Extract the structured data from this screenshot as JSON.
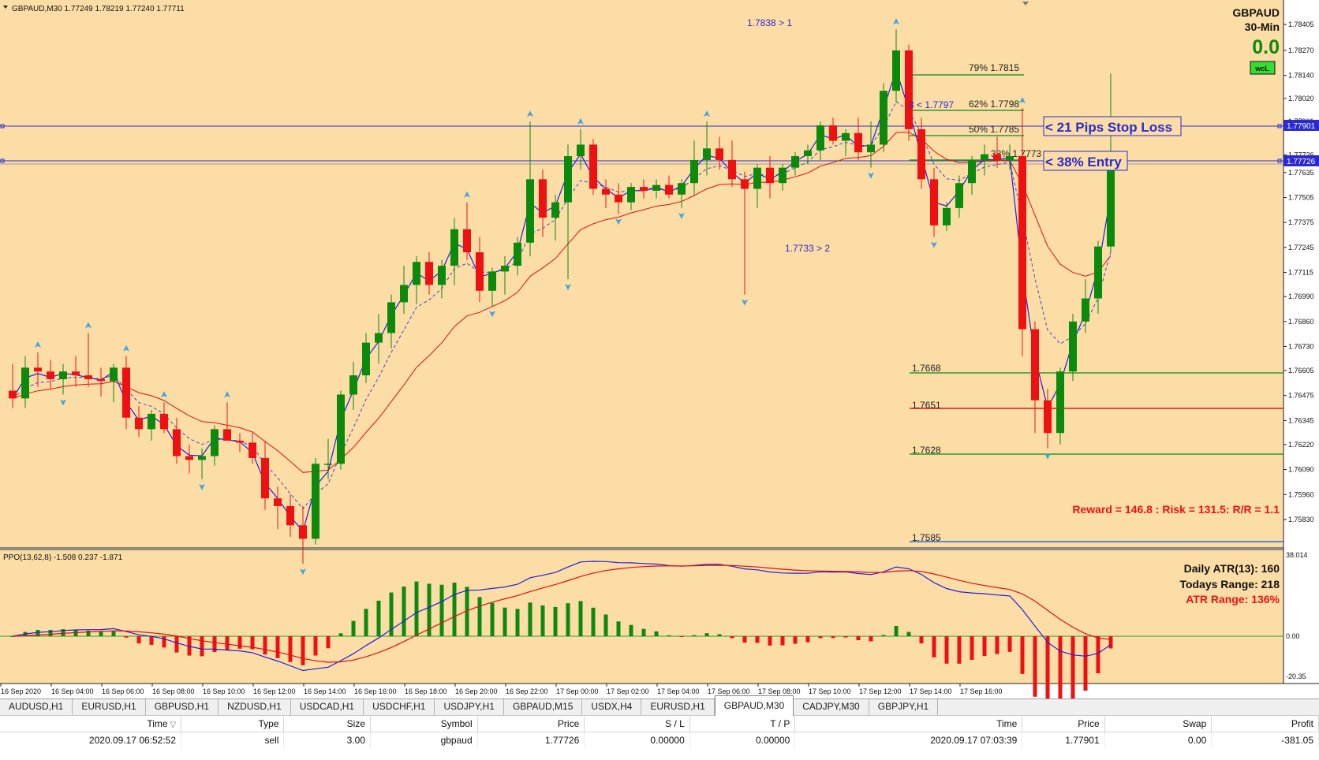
{
  "window": {
    "info_symbol": "GBPAUD,M30",
    "info_ohlc": "1.77249 1.78219 1.77240 1.77711"
  },
  "overlay": {
    "symbol": "GBPAUD",
    "timeframe": "30-Min",
    "value": "0.0",
    "badge": "wcL",
    "reward_text": "Reward = 146.8 : Risk = 131.5: R/R = 1.1",
    "stop_loss_label": "< 21 Pips Stop Loss",
    "entry_label": "< 38% Entry",
    "high_marker": "1.7838 > 1",
    "low_marker": "1.7733 > 2",
    "level3_marker": "3 < 1.7797",
    "fib": [
      {
        "label": "79%",
        "price": "1.7815"
      },
      {
        "label": "62%",
        "price": "1.7798"
      },
      {
        "label": "50%",
        "price": "1.7785"
      },
      {
        "label": "38%",
        "price": "1.7773"
      }
    ],
    "low_levels": [
      "1.7668",
      "1.7651",
      "1.7628",
      "1.7585"
    ],
    "atr_daily": "Daily ATR(13): 160",
    "atr_range_today": "Todays Range: 218",
    "atr_percent": "ATR Range: 136%"
  },
  "price_axis": {
    "labels": [
      "1.78405",
      "1.78270",
      "1.78140",
      "1.78020",
      "1.77901",
      "1.77726",
      "1.77635",
      "1.77505",
      "1.77375",
      "1.77245",
      "1.77115",
      "1.76990",
      "1.76860",
      "1.76730",
      "1.76605",
      "1.76475",
      "1.76345",
      "1.76220",
      "1.76090",
      "1.75960",
      "1.75830"
    ],
    "sl_tag": "1.77901",
    "entry_tag": "1.77726"
  },
  "ppo": {
    "title": "PPO(13,62,8) -1.508 0.237 -1.871",
    "axis": [
      "38.014",
      "0.00",
      "-20.35"
    ],
    "colors": {
      "up": "#0c8a0c",
      "down": "#ee1111",
      "fast": "#1f1fdd",
      "slow": "#dd1111"
    }
  },
  "time_axis": [
    "16 Sep 2020",
    "16 Sep 04:00",
    "16 Sep 06:00",
    "16 Sep 08:00",
    "16 Sep 10:00",
    "16 Sep 12:00",
    "16 Sep 14:00",
    "16 Sep 16:00",
    "16 Sep 18:00",
    "16 Sep 20:00",
    "16 Sep 22:00",
    "17 Sep 00:00",
    "17 Sep 02:00",
    "17 Sep 04:00",
    "17 Sep 06:00",
    "17 Sep 08:00",
    "17 Sep 10:00",
    "17 Sep 12:00",
    "17 Sep 14:00",
    "17 Sep 16:00"
  ],
  "tabs": [
    {
      "label": "AUDUSD,H1",
      "active": false
    },
    {
      "label": "EURUSD,H1",
      "active": false
    },
    {
      "label": "GBPUSD,H1",
      "active": false
    },
    {
      "label": "NZDUSD,H1",
      "active": false
    },
    {
      "label": "USDCAD,H1",
      "active": false
    },
    {
      "label": "USDCHF,H1",
      "active": false
    },
    {
      "label": "USDJPY,H1",
      "active": false
    },
    {
      "label": "GBPAUD,M15",
      "active": false
    },
    {
      "label": "USDX,H4",
      "active": false
    },
    {
      "label": "EURUSD,H1",
      "active": false
    },
    {
      "label": "GBPAUD,M30",
      "active": true
    },
    {
      "label": "CADJPY,M30",
      "active": false
    },
    {
      "label": "GBPJPY,H1",
      "active": false
    }
  ],
  "trade": {
    "headers": [
      "Time",
      "Type",
      "Size",
      "Symbol",
      "Price",
      "S / L",
      "T / P",
      "Time",
      "Price",
      "Swap",
      "Profit"
    ],
    "row": [
      "2020.09.17 06:52:52",
      "sell",
      "3.00",
      "gbpaud",
      "1.77726",
      "0.00000",
      "0.00000",
      "2020.09.17 07:03:39",
      "1.77901",
      "0.00",
      "-381.05"
    ]
  },
  "chart_data": {
    "type": "candlestick",
    "symbol": "GBPAUD",
    "timeframe": "M30",
    "candles": [
      {
        "o": 1.765,
        "h": 1.7664,
        "l": 1.7641,
        "c": 1.7646
      },
      {
        "o": 1.7646,
        "h": 1.7668,
        "l": 1.7641,
        "c": 1.7662
      },
      {
        "o": 1.7662,
        "h": 1.767,
        "l": 1.7652,
        "c": 1.766
      },
      {
        "o": 1.766,
        "h": 1.7666,
        "l": 1.7651,
        "c": 1.7656
      },
      {
        "o": 1.7656,
        "h": 1.7664,
        "l": 1.7648,
        "c": 1.766
      },
      {
        "o": 1.766,
        "h": 1.7668,
        "l": 1.7652,
        "c": 1.7658
      },
      {
        "o": 1.7658,
        "h": 1.768,
        "l": 1.7652,
        "c": 1.7656
      },
      {
        "o": 1.7656,
        "h": 1.7662,
        "l": 1.7647,
        "c": 1.7655
      },
      {
        "o": 1.7655,
        "h": 1.7664,
        "l": 1.7644,
        "c": 1.7662
      },
      {
        "o": 1.7662,
        "h": 1.7668,
        "l": 1.763,
        "c": 1.7636
      },
      {
        "o": 1.7636,
        "h": 1.7642,
        "l": 1.7626,
        "c": 1.763
      },
      {
        "o": 1.763,
        "h": 1.764,
        "l": 1.7624,
        "c": 1.7638
      },
      {
        "o": 1.7638,
        "h": 1.7644,
        "l": 1.7628,
        "c": 1.763
      },
      {
        "o": 1.763,
        "h": 1.7636,
        "l": 1.7612,
        "c": 1.7616
      },
      {
        "o": 1.7616,
        "h": 1.7622,
        "l": 1.7607,
        "c": 1.7614
      },
      {
        "o": 1.7614,
        "h": 1.762,
        "l": 1.7604,
        "c": 1.7616
      },
      {
        "o": 1.7616,
        "h": 1.7632,
        "l": 1.7611,
        "c": 1.763
      },
      {
        "o": 1.763,
        "h": 1.7644,
        "l": 1.7626,
        "c": 1.7624
      },
      {
        "o": 1.7624,
        "h": 1.7628,
        "l": 1.7618,
        "c": 1.7623
      },
      {
        "o": 1.7623,
        "h": 1.7628,
        "l": 1.7612,
        "c": 1.7615
      },
      {
        "o": 1.7615,
        "h": 1.7624,
        "l": 1.7588,
        "c": 1.7594
      },
      {
        "o": 1.7594,
        "h": 1.76,
        "l": 1.7578,
        "c": 1.759
      },
      {
        "o": 1.759,
        "h": 1.7596,
        "l": 1.7574,
        "c": 1.758
      },
      {
        "o": 1.758,
        "h": 1.759,
        "l": 1.756,
        "c": 1.7573
      },
      {
        "o": 1.7573,
        "h": 1.7615,
        "l": 1.757,
        "c": 1.7612
      },
      {
        "o": 1.7612,
        "h": 1.7625,
        "l": 1.7604,
        "c": 1.7612
      },
      {
        "o": 1.7612,
        "h": 1.765,
        "l": 1.7609,
        "c": 1.7648
      },
      {
        "o": 1.7648,
        "h": 1.7665,
        "l": 1.764,
        "c": 1.7658
      },
      {
        "o": 1.7658,
        "h": 1.768,
        "l": 1.7654,
        "c": 1.7675
      },
      {
        "o": 1.7675,
        "h": 1.769,
        "l": 1.7664,
        "c": 1.768
      },
      {
        "o": 1.768,
        "h": 1.77,
        "l": 1.7672,
        "c": 1.7696
      },
      {
        "o": 1.7696,
        "h": 1.7715,
        "l": 1.769,
        "c": 1.7705
      },
      {
        "o": 1.7705,
        "h": 1.772,
        "l": 1.7695,
        "c": 1.7717
      },
      {
        "o": 1.7717,
        "h": 1.7722,
        "l": 1.77,
        "c": 1.7705
      },
      {
        "o": 1.7705,
        "h": 1.7718,
        "l": 1.7698,
        "c": 1.7715
      },
      {
        "o": 1.7715,
        "h": 1.774,
        "l": 1.7705,
        "c": 1.7734
      },
      {
        "o": 1.7734,
        "h": 1.7748,
        "l": 1.7718,
        "c": 1.7722
      },
      {
        "o": 1.7722,
        "h": 1.773,
        "l": 1.7696,
        "c": 1.7702
      },
      {
        "o": 1.7702,
        "h": 1.7714,
        "l": 1.7694,
        "c": 1.7712
      },
      {
        "o": 1.7712,
        "h": 1.772,
        "l": 1.77,
        "c": 1.7715
      },
      {
        "o": 1.7715,
        "h": 1.773,
        "l": 1.771,
        "c": 1.7727
      },
      {
        "o": 1.7727,
        "h": 1.779,
        "l": 1.772,
        "c": 1.776
      },
      {
        "o": 1.776,
        "h": 1.7765,
        "l": 1.773,
        "c": 1.774
      },
      {
        "o": 1.774,
        "h": 1.7752,
        "l": 1.7728,
        "c": 1.7748
      },
      {
        "o": 1.7748,
        "h": 1.7778,
        "l": 1.7708,
        "c": 1.7772
      },
      {
        "o": 1.7772,
        "h": 1.7786,
        "l": 1.7765,
        "c": 1.7778
      },
      {
        "o": 1.7778,
        "h": 1.7781,
        "l": 1.7752,
        "c": 1.7755
      },
      {
        "o": 1.7755,
        "h": 1.776,
        "l": 1.7745,
        "c": 1.7752
      },
      {
        "o": 1.7752,
        "h": 1.7758,
        "l": 1.7742,
        "c": 1.7748
      },
      {
        "o": 1.7748,
        "h": 1.7758,
        "l": 1.7744,
        "c": 1.7756
      },
      {
        "o": 1.7756,
        "h": 1.776,
        "l": 1.775,
        "c": 1.7754
      },
      {
        "o": 1.7754,
        "h": 1.776,
        "l": 1.775,
        "c": 1.7757
      },
      {
        "o": 1.7757,
        "h": 1.7762,
        "l": 1.775,
        "c": 1.7752
      },
      {
        "o": 1.7752,
        "h": 1.776,
        "l": 1.7745,
        "c": 1.7758
      },
      {
        "o": 1.7758,
        "h": 1.778,
        "l": 1.7752,
        "c": 1.777
      },
      {
        "o": 1.777,
        "h": 1.779,
        "l": 1.7762,
        "c": 1.7776
      },
      {
        "o": 1.7776,
        "h": 1.7782,
        "l": 1.7765,
        "c": 1.777
      },
      {
        "o": 1.777,
        "h": 1.778,
        "l": 1.7756,
        "c": 1.776
      },
      {
        "o": 1.776,
        "h": 1.7764,
        "l": 1.77,
        "c": 1.7755
      },
      {
        "o": 1.7755,
        "h": 1.7768,
        "l": 1.7745,
        "c": 1.7766
      },
      {
        "o": 1.7766,
        "h": 1.7772,
        "l": 1.775,
        "c": 1.7758
      },
      {
        "o": 1.7758,
        "h": 1.7768,
        "l": 1.7754,
        "c": 1.7766
      },
      {
        "o": 1.7766,
        "h": 1.7774,
        "l": 1.7762,
        "c": 1.7772
      },
      {
        "o": 1.7772,
        "h": 1.7778,
        "l": 1.7768,
        "c": 1.7775
      },
      {
        "o": 1.7775,
        "h": 1.779,
        "l": 1.777,
        "c": 1.7788
      },
      {
        "o": 1.7788,
        "h": 1.7792,
        "l": 1.7778,
        "c": 1.778
      },
      {
        "o": 1.778,
        "h": 1.7786,
        "l": 1.7772,
        "c": 1.7784
      },
      {
        "o": 1.7784,
        "h": 1.7792,
        "l": 1.777,
        "c": 1.7774
      },
      {
        "o": 1.7774,
        "h": 1.779,
        "l": 1.7766,
        "c": 1.7778
      },
      {
        "o": 1.7778,
        "h": 1.781,
        "l": 1.7774,
        "c": 1.7806
      },
      {
        "o": 1.7806,
        "h": 1.7838,
        "l": 1.78,
        "c": 1.7827
      },
      {
        "o": 1.7827,
        "h": 1.783,
        "l": 1.778,
        "c": 1.7786
      },
      {
        "o": 1.7786,
        "h": 1.7792,
        "l": 1.7755,
        "c": 1.776
      },
      {
        "o": 1.776,
        "h": 1.7766,
        "l": 1.773,
        "c": 1.7736
      },
      {
        "o": 1.7736,
        "h": 1.7748,
        "l": 1.7733,
        "c": 1.7745
      },
      {
        "o": 1.7745,
        "h": 1.7762,
        "l": 1.774,
        "c": 1.7758
      },
      {
        "o": 1.7758,
        "h": 1.7772,
        "l": 1.7752,
        "c": 1.777
      },
      {
        "o": 1.777,
        "h": 1.7778,
        "l": 1.7762,
        "c": 1.7773
      },
      {
        "o": 1.7773,
        "h": 1.7782,
        "l": 1.7766,
        "c": 1.777
      },
      {
        "o": 1.777,
        "h": 1.7778,
        "l": 1.7765,
        "c": 1.7772
      },
      {
        "o": 1.7772,
        "h": 1.7797,
        "l": 1.7668,
        "c": 1.7682
      },
      {
        "o": 1.7682,
        "h": 1.7686,
        "l": 1.7628,
        "c": 1.7645
      },
      {
        "o": 1.7645,
        "h": 1.7651,
        "l": 1.762,
        "c": 1.7628
      },
      {
        "o": 1.7628,
        "h": 1.7662,
        "l": 1.7622,
        "c": 1.766
      },
      {
        "o": 1.766,
        "h": 1.769,
        "l": 1.7655,
        "c": 1.7686
      },
      {
        "o": 1.7686,
        "h": 1.7708,
        "l": 1.768,
        "c": 1.7698
      },
      {
        "o": 1.7698,
        "h": 1.7728,
        "l": 1.769,
        "c": 1.7725
      },
      {
        "o": 1.7725,
        "h": 1.7815,
        "l": 1.7722,
        "c": 1.7771
      }
    ]
  }
}
